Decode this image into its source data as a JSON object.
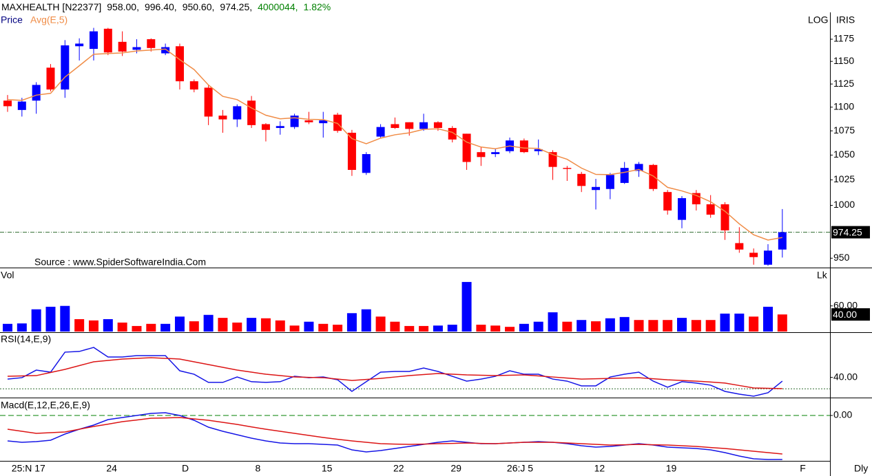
{
  "chart_data": [
    {
      "type": "candlestick",
      "title": "MAXHEALTH [N22377]",
      "header_values": [
        "958.00,",
        "996.40,",
        "950.60,",
        "974.25,",
        "4000044,",
        "1.82%"
      ],
      "y_label": "Price",
      "scale_labels": [
        "LOG",
        "IRIS"
      ],
      "source": "Source : www.SpiderSoftwareIndia.Com",
      "period_label": "Dly",
      "log_scale": true,
      "up_color": "#0000ff",
      "down_color": "#ff0000",
      "categories": [
        null,
        "25:N 17",
        null,
        null,
        null,
        null,
        "24",
        null,
        null,
        null,
        null,
        "D",
        null,
        null,
        null,
        null,
        "8",
        null,
        null,
        null,
        null,
        "15",
        null,
        null,
        null,
        null,
        "22",
        null,
        null,
        null,
        "29",
        null,
        null,
        null,
        null,
        "26:J 5",
        null,
        null,
        null,
        null,
        "12",
        null,
        null,
        null,
        null,
        "19",
        null,
        null,
        null,
        null,
        null,
        null,
        null,
        null,
        "F"
      ],
      "open": [
        1107,
        1097,
        1107,
        1143,
        1119,
        1167,
        1164,
        1187,
        1172,
        1163,
        1175,
        1159,
        1167,
        1128,
        1121,
        1091,
        1087,
        1107,
        1082,
        1078,
        1079,
        1086,
        1083,
        1092,
        1073,
        1032,
        1069,
        1082,
        1084,
        1077,
        1084,
        1078,
        1072,
        1053,
        1051,
        1054,
        1065,
        1054,
        1053,
        1037,
        1031,
        1015,
        1016,
        1022,
        1034,
        1040,
        1013,
        986,
        1012,
        1001,
        1001,
        964,
        955,
        944,
        958
      ],
      "high": [
        1113,
        1110,
        1127,
        1147,
        1174,
        1176,
        1188,
        1188,
        1184,
        1175,
        1176,
        1170,
        1170,
        1130,
        1124,
        1097,
        1103,
        1112,
        1083,
        1085,
        1093,
        1095,
        1095,
        1094,
        1076,
        1053,
        1082,
        1089,
        1084,
        1093,
        1085,
        1080,
        1072,
        1058,
        1057,
        1068,
        1067,
        1066,
        1055,
        1039,
        1033,
        1026,
        1032,
        1043,
        1043,
        1041,
        1015,
        1009,
        1015,
        1010,
        1003,
        979,
        959,
        963,
        996.4
      ],
      "low": [
        1095,
        1090,
        1093,
        1117,
        1110,
        1151,
        1151,
        1157,
        1156,
        1159,
        1161,
        1157,
        1119,
        1116,
        1081,
        1073,
        1079,
        1078,
        1064,
        1071,
        1077,
        1082,
        1068,
        1073,
        1029,
        1030,
        1068,
        1077,
        1070,
        1075,
        1075,
        1063,
        1035,
        1039,
        1048,
        1052,
        1052,
        1050,
        1025,
        1024,
        1013,
        996,
        1006,
        1021,
        1028,
        1014,
        991,
        978,
        995,
        988,
        967,
        955,
        944,
        943,
        950.6
      ],
      "close": [
        1101,
        1106,
        1124,
        1119,
        1168,
        1170,
        1184,
        1160,
        1161,
        1166,
        1165,
        1166,
        1128,
        1119,
        1090,
        1087,
        1101,
        1081,
        1076,
        1080,
        1091,
        1084,
        1086,
        1075,
        1035,
        1051,
        1079,
        1078,
        1077,
        1084,
        1078,
        1066,
        1043,
        1048,
        1053,
        1065,
        1053,
        1056,
        1038,
        1036,
        1019,
        1018,
        1030,
        1037,
        1041,
        1016,
        995,
        1007,
        1001,
        991,
        976,
        958,
        951,
        957,
        974.25
      ],
      "series": [
        {
          "name": "Avg(E,5)",
          "color": "#f08c46",
          "values": [
            1108,
            1107.3,
            1112.9,
            1114.9,
            1132.6,
            1145.1,
            1158,
            1158.7,
            1159.5,
            1161.6,
            1162.7,
            1163.8,
            1151.9,
            1140.9,
            1123.9,
            1111.6,
            1108.1,
            1099.1,
            1091.4,
            1087.6,
            1088.7,
            1087.1,
            1086.8,
            1082.8,
            1066.9,
            1061.6,
            1067.4,
            1070.9,
            1072.9,
            1076.6,
            1077.1,
            1073.4,
            1063.3,
            1058.2,
            1056.5,
            1059.3,
            1057.2,
            1056.8,
            1050.5,
            1045.7,
            1036.8,
            1030.5,
            1030.3,
            1032.6,
            1035.4,
            1028.9,
            1017.6,
            1014.1,
            1009.7,
            1003.5,
            994.3,
            982.2,
            971.8,
            966.9,
            969.3
          ]
        }
      ],
      "ylim": [
        942,
        1206
      ],
      "yticks": [
        950,
        1000,
        1025,
        1050,
        1075,
        1100,
        1125,
        1150,
        1175
      ]
    },
    {
      "type": "bar",
      "title": "Vol",
      "unit": "Lk",
      "values": [
        18,
        19,
        52,
        58,
        60,
        29,
        26,
        29,
        21,
        13,
        18,
        18,
        35,
        24,
        39,
        32,
        21,
        32,
        31,
        26,
        14,
        23,
        18,
        16,
        43,
        52,
        35,
        23,
        13,
        13,
        14,
        16,
        116,
        16,
        14,
        11,
        18,
        23,
        45,
        23,
        27,
        24,
        31,
        34,
        27,
        27,
        27,
        32,
        27,
        27,
        42,
        42,
        35,
        58,
        40
      ],
      "colors": [
        "#0000ff",
        "#0000ff",
        "#0000ff",
        "#0000ff",
        "#0000ff",
        "#ff0000",
        "#ff0000",
        "#0000ff",
        "#ff0000",
        "#ff0000",
        "#ff0000",
        "#0000ff",
        "#0000ff",
        "#ff0000",
        "#0000ff",
        "#ff0000",
        "#ff0000",
        "#0000ff",
        "#ff0000",
        "#ff0000",
        "#ff0000",
        "#0000ff",
        "#ff0000",
        "#ff0000",
        "#0000ff",
        "#0000ff",
        "#ff0000",
        "#ff0000",
        "#ff0000",
        "#ff0000",
        "#0000ff",
        "#0000ff",
        "#0000ff",
        "#ff0000",
        "#ff0000",
        "#ff0000",
        "#0000ff",
        "#0000ff",
        "#0000ff",
        "#ff0000",
        "#0000ff",
        "#ff0000",
        "#0000ff",
        "#0000ff",
        "#ff0000",
        "#ff0000",
        "#ff0000",
        "#0000ff",
        "#ff0000",
        "#ff0000",
        "#0000ff",
        "#0000ff",
        "#ff0000",
        "#0000ff",
        "#ff0000"
      ],
      "last_value_label": "40.00",
      "ylim": [
        0,
        140
      ],
      "yticks": [
        {
          "value": 60,
          "label": "60.00"
        }
      ]
    },
    {
      "type": "line",
      "title": "RSI(14,E,9)",
      "series": [
        {
          "color": "#1414e6",
          "values": [
            38.5,
            39.7,
            46.3,
            44.5,
            61.9,
            62.5,
            66.0,
            57.7,
            57.7,
            58.9,
            58.9,
            58.9,
            45.7,
            42.7,
            35.6,
            35.6,
            40.3,
            36.2,
            35.6,
            36.2,
            40.9,
            39.7,
            40.3,
            37.9,
            27.8,
            36.2,
            44.5,
            45.1,
            45.1,
            48.1,
            45.1,
            40.9,
            36.7,
            38.5,
            40.9,
            45.7,
            42.7,
            42.7,
            38.5,
            36.7,
            32.6,
            32.6,
            40.3,
            42.7,
            44.5,
            36.7,
            31.4,
            36.2,
            35.0,
            33.2,
            27.8,
            25.4,
            23.6,
            26.6,
            36.7
          ]
        },
        {
          "color": "#dc1414",
          "values": [
            40.9,
            41.2,
            41.5,
            44.2,
            46.9,
            50.2,
            53.5,
            54.7,
            55.9,
            56.5,
            57.1,
            56.5,
            55.9,
            53.5,
            51.1,
            48.7,
            46.3,
            44.5,
            42.7,
            41.5,
            40.3,
            40.0,
            39.7,
            38.5,
            37.3,
            38.2,
            39.1,
            40.3,
            41.5,
            42.4,
            43.3,
            42.7,
            42.1,
            41.8,
            41.5,
            41.8,
            42.1,
            41.2,
            40.3,
            39.4,
            38.5,
            38.8,
            39.1,
            39.4,
            39.7,
            38.8,
            37.9,
            37.3,
            36.7,
            35.9,
            35.0,
            32.9,
            30.8,
            30.5,
            30.2
          ]
        }
      ],
      "reference_lines": [
        30
      ],
      "ylim": [
        23,
        78
      ],
      "yticks": [
        {
          "value": 40,
          "label": "40.00"
        }
      ]
    },
    {
      "type": "line",
      "title": "Macd(E,12,E,26,E,9)",
      "series": [
        {
          "color": "#1414e6",
          "values": [
            -18.5,
            -19.5,
            -19,
            -18,
            -13.5,
            -10,
            -7,
            -3,
            -1.5,
            0,
            1.5,
            2,
            0,
            -3.5,
            -8.5,
            -11.5,
            -14,
            -16.5,
            -18.5,
            -20,
            -20.5,
            -20.5,
            -21,
            -21.5,
            -25,
            -26.5,
            -25.5,
            -24,
            -22.5,
            -21,
            -19.5,
            -18.5,
            -19.5,
            -20.5,
            -20.5,
            -20,
            -19.5,
            -19,
            -19.5,
            -20.5,
            -22,
            -23,
            -22.5,
            -21.5,
            -20.5,
            -21.5,
            -23,
            -23.5,
            -24,
            -25,
            -27,
            -29.5,
            -31.5,
            -32,
            -32
          ]
        },
        {
          "color": "#dc1414",
          "values": [
            -10,
            -11.5,
            -13,
            -12.5,
            -12,
            -10,
            -8,
            -6.3,
            -4.5,
            -3.3,
            -2,
            -1.8,
            -1.5,
            -2.5,
            -3.5,
            -5,
            -6.5,
            -8.3,
            -10,
            -11.5,
            -13,
            -14.5,
            -16,
            -17.3,
            -18.5,
            -19.5,
            -20.5,
            -20.8,
            -21,
            -20.8,
            -20.5,
            -20.3,
            -20,
            -20.3,
            -20.5,
            -20,
            -19.5,
            -19.5,
            -19.5,
            -20,
            -20.5,
            -21,
            -21.5,
            -21.3,
            -21,
            -21.3,
            -21.5,
            -22,
            -22.5,
            -23.3,
            -24,
            -25,
            -26,
            -27,
            -28
          ]
        }
      ],
      "ylim": [
        -33,
        12
      ],
      "yticks": [
        {
          "value": 0,
          "label": "0.00"
        }
      ]
    }
  ]
}
